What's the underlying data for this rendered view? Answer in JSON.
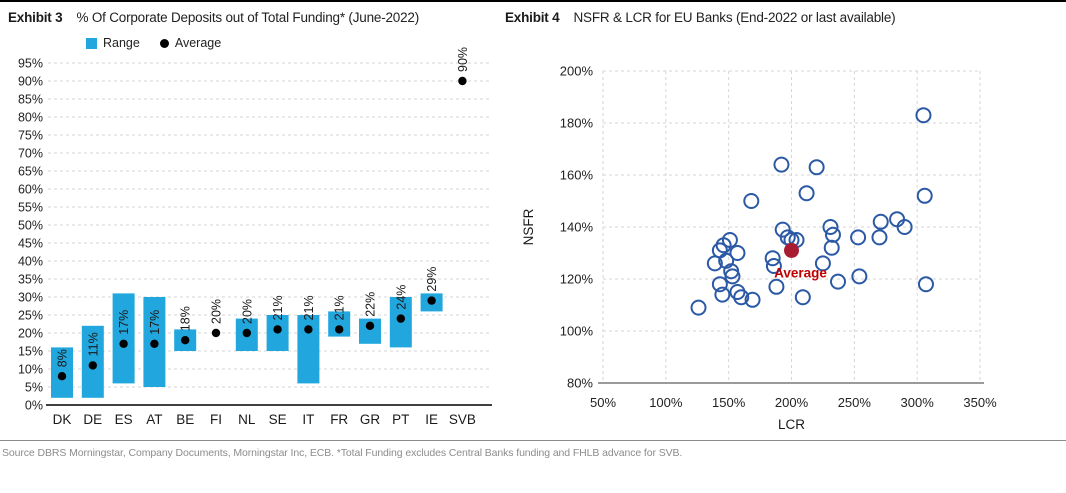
{
  "page": {
    "footer": "Source DBRS Morningstar, Company Documents,  Morningstar Inc, ECB. *Total Funding excludes Central Banks funding and  FHLB advance for SVB."
  },
  "exhibit3": {
    "label": "Exhibit 3",
    "title": "% Of Corporate Deposits out of Total Funding* (June-2022)",
    "legend": [
      {
        "label": "Range",
        "color": "#21a7dd"
      },
      {
        "label": "Average",
        "color": "#000000"
      }
    ]
  },
  "exhibit4": {
    "label": "Exhibit 4",
    "title": "NSFR & LCR for EU Banks (End-2022 or last available)"
  },
  "chart_data": [
    {
      "type": "bar",
      "title": "% Of Corporate Deposits out of Total Funding* (June-2022)",
      "categories": [
        "DK",
        "DE",
        "ES",
        "AT",
        "BE",
        "FI",
        "NL",
        "SE",
        "IT",
        "FR",
        "GR",
        "PT",
        "IE",
        "SVB"
      ],
      "series": [
        {
          "name": "Range",
          "kind": "range",
          "low": [
            2,
            2,
            6,
            5,
            15,
            null,
            15,
            15,
            6,
            19,
            17,
            16,
            26,
            null
          ],
          "high": [
            16,
            22,
            31,
            30,
            21,
            null,
            24,
            25,
            25,
            26,
            24,
            30,
            31,
            null
          ]
        },
        {
          "name": "Average",
          "kind": "point",
          "values": [
            8,
            11,
            17,
            17,
            18,
            20,
            20,
            21,
            21,
            21,
            22,
            24,
            29,
            90
          ]
        }
      ],
      "point_labels": [
        "8%",
        "11%",
        "17%",
        "17%",
        "18%",
        "20%",
        "20%",
        "21%",
        "21%",
        "21%",
        "22%",
        "24%",
        "29%",
        "90%"
      ],
      "ylim": [
        0,
        95
      ],
      "yticks": [
        "0%",
        "5%",
        "10%",
        "15%",
        "20%",
        "25%",
        "30%",
        "35%",
        "40%",
        "45%",
        "50%",
        "55%",
        "60%",
        "65%",
        "70%",
        "75%",
        "80%",
        "85%",
        "90%",
        "95%"
      ],
      "grid": "dashed horizontal",
      "legend_position": "top",
      "colors": {
        "range": "#21a7dd",
        "average": "#000000",
        "grid": "#d6d6d6",
        "axis": "#000000"
      }
    },
    {
      "type": "scatter",
      "title": "NSFR & LCR for EU Banks (End-2022 or last available)",
      "xlabel": "LCR",
      "ylabel": "NSFR",
      "xlim": [
        50,
        350
      ],
      "ylim": [
        80,
        200
      ],
      "xticks": [
        "50%",
        "100%",
        "150%",
        "200%",
        "250%",
        "300%",
        "350%"
      ],
      "yticks": [
        "80%",
        "100%",
        "120%",
        "140%",
        "160%",
        "180%",
        "200%"
      ],
      "grid": "dashed both",
      "points": [
        [
          192,
          164
        ],
        [
          220,
          163
        ],
        [
          212,
          153
        ],
        [
          168,
          150
        ],
        [
          305,
          183
        ],
        [
          306,
          152
        ],
        [
          284,
          143
        ],
        [
          290,
          140
        ],
        [
          271,
          142
        ],
        [
          270,
          136
        ],
        [
          253,
          136
        ],
        [
          231,
          140
        ],
        [
          233,
          137
        ],
        [
          232,
          132
        ],
        [
          193,
          139
        ],
        [
          197,
          136
        ],
        [
          200,
          135
        ],
        [
          204,
          135
        ],
        [
          185,
          128
        ],
        [
          186,
          125
        ],
        [
          225,
          126
        ],
        [
          237,
          119
        ],
        [
          254,
          121
        ],
        [
          307,
          118
        ],
        [
          209,
          113
        ],
        [
          188,
          117
        ],
        [
          151,
          135
        ],
        [
          146,
          133
        ],
        [
          143,
          131
        ],
        [
          157,
          130
        ],
        [
          139,
          126
        ],
        [
          148,
          127
        ],
        [
          152,
          123
        ],
        [
          153,
          121
        ],
        [
          143,
          118
        ],
        [
          145,
          114
        ],
        [
          157,
          115
        ],
        [
          160,
          113
        ],
        [
          169,
          112
        ],
        [
          126,
          109
        ]
      ],
      "average_point": {
        "x": 200,
        "y": 131,
        "label": "Average"
      },
      "colors": {
        "point_stroke": "#2b59a5",
        "average_fill": "#a81c32",
        "average_label": "#c00000",
        "grid": "#d6d6d6",
        "axis": "#9a9a9a"
      }
    }
  ]
}
